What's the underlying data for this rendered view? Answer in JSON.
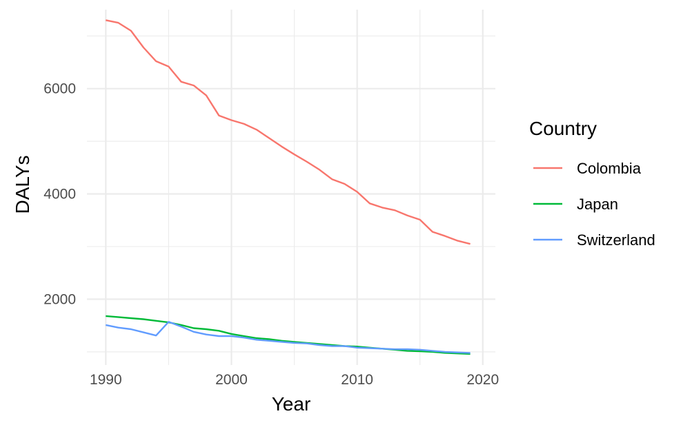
{
  "chart_data": {
    "type": "line",
    "xlabel": "Year",
    "ylabel": "DALYs",
    "xlim": [
      1988.5,
      2021
    ],
    "ylim": [
      750,
      7500
    ],
    "x_ticks": [
      1990,
      2000,
      2010,
      2020
    ],
    "y_ticks": [
      2000,
      4000,
      6000
    ],
    "x_tick_labels": [
      "1990",
      "2000",
      "2010",
      "2020"
    ],
    "y_tick_labels": [
      "2000",
      "4000",
      "6000"
    ],
    "grid": true,
    "legend": {
      "title": "Country",
      "position": "right"
    },
    "x": [
      1990,
      1991,
      1992,
      1993,
      1994,
      1995,
      1996,
      1997,
      1998,
      1999,
      2000,
      2001,
      2002,
      2003,
      2004,
      2005,
      2006,
      2007,
      2008,
      2009,
      2010,
      2011,
      2012,
      2013,
      2014,
      2015,
      2016,
      2017,
      2018,
      2019
    ],
    "series": [
      {
        "name": "Colombia",
        "color": "#F8766D",
        "values": [
          7300,
          7250,
          7100,
          6780,
          6520,
          6420,
          6130,
          6060,
          5870,
          5490,
          5400,
          5330,
          5220,
          5060,
          4900,
          4750,
          4610,
          4460,
          4280,
          4190,
          4040,
          3820,
          3740,
          3690,
          3590,
          3510,
          3280,
          3200,
          3110,
          3050
        ]
      },
      {
        "name": "Japan",
        "color": "#00BA38",
        "values": [
          1680,
          1660,
          1640,
          1620,
          1590,
          1560,
          1510,
          1450,
          1430,
          1400,
          1340,
          1300,
          1260,
          1240,
          1210,
          1190,
          1170,
          1150,
          1130,
          1110,
          1100,
          1080,
          1060,
          1040,
          1020,
          1010,
          1000,
          980,
          970,
          960
        ]
      },
      {
        "name": "Switzerland",
        "color": "#619CFF",
        "values": [
          1510,
          1460,
          1430,
          1370,
          1310,
          1570,
          1480,
          1380,
          1330,
          1300,
          1300,
          1270,
          1230,
          1210,
          1190,
          1170,
          1160,
          1130,
          1110,
          1110,
          1080,
          1070,
          1060,
          1050,
          1050,
          1040,
          1020,
          1000,
          990,
          980
        ]
      }
    ]
  }
}
